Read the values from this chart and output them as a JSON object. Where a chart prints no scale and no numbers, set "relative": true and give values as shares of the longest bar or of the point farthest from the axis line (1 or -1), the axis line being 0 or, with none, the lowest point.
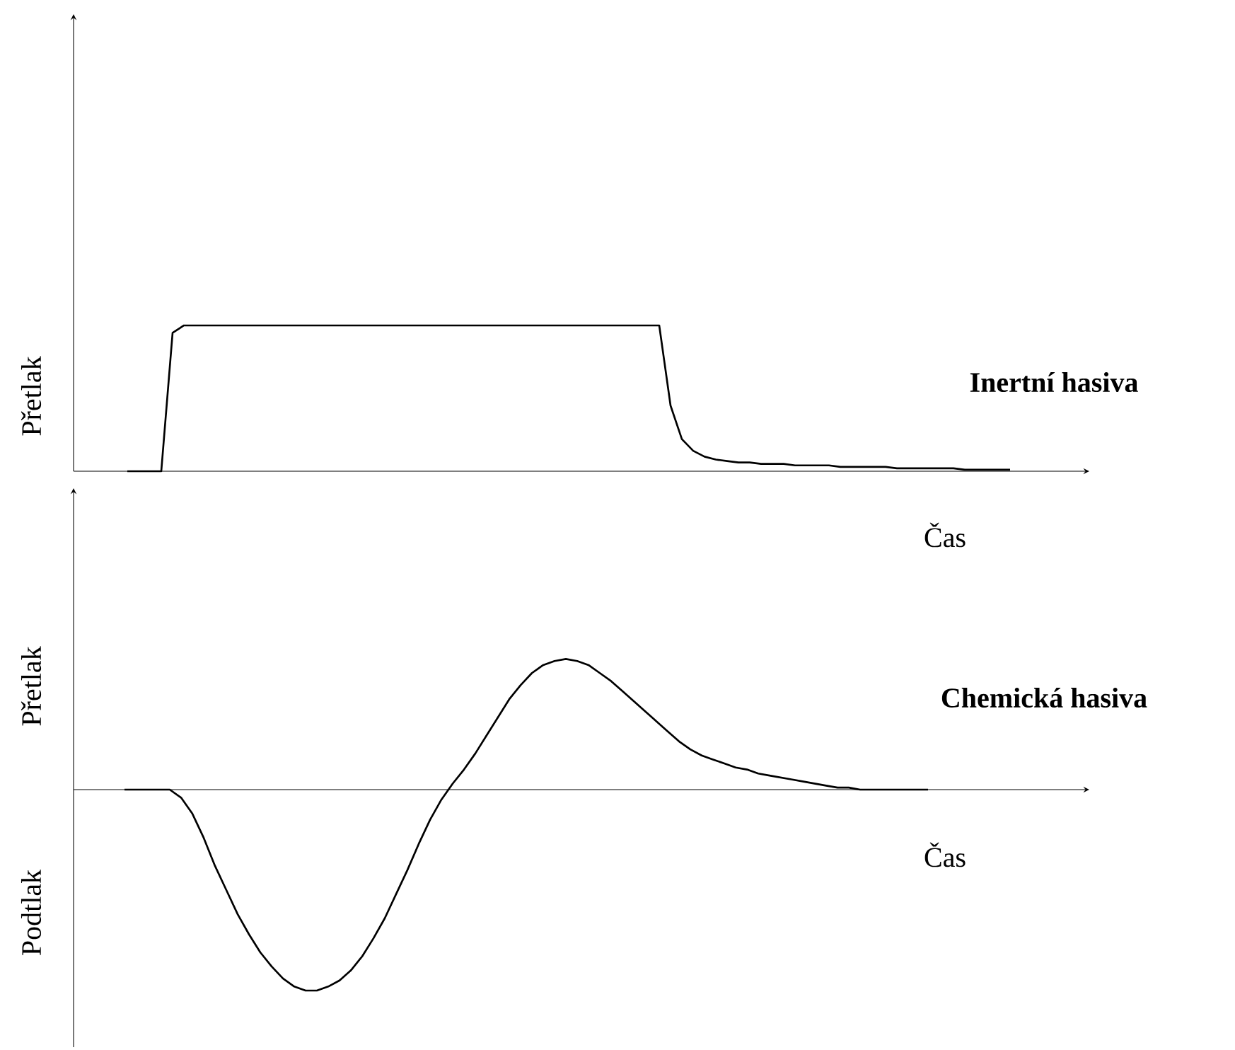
{
  "chart_data": [
    {
      "type": "line",
      "title": "Inertní hasiva",
      "xlabel": "Čas",
      "ylabel": "Přetlak",
      "relative": true,
      "color": "#000000",
      "categories": [
        null,
        null,
        null,
        null,
        null,
        null,
        null,
        null,
        null,
        null,
        null,
        null,
        null,
        null,
        null,
        null,
        null,
        null,
        null,
        null,
        null,
        null,
        null,
        null,
        null,
        null,
        null,
        null,
        null,
        null,
        null,
        null,
        null,
        null,
        null,
        null,
        null,
        null,
        null,
        null,
        null,
        null,
        null,
        null,
        null,
        null,
        null,
        null,
        null,
        null,
        null,
        null,
        null,
        null,
        null,
        null,
        null,
        null,
        null,
        null,
        null,
        null,
        null,
        null,
        null,
        null,
        null,
        null,
        null,
        null,
        null,
        null,
        null,
        null,
        null,
        null,
        null,
        null,
        null
      ],
      "values": [
        0,
        0,
        0,
        0,
        0.95,
        1,
        1,
        1,
        1,
        1,
        1,
        1,
        1,
        1,
        1,
        1,
        1,
        1,
        1,
        1,
        1,
        1,
        1,
        1,
        1,
        1,
        1,
        1,
        1,
        1,
        1,
        1,
        1,
        1,
        1,
        1,
        1,
        1,
        1,
        1,
        1,
        1,
        1,
        1,
        1,
        1,
        1,
        1,
        0.45,
        0.22,
        0.14,
        0.1,
        0.08,
        0.07,
        0.06,
        0.06,
        0.05,
        0.05,
        0.05,
        0.04,
        0.04,
        0.04,
        0.04,
        0.03,
        0.03,
        0.03,
        0.03,
        0.03,
        0.02,
        0.02,
        0.02,
        0.02,
        0.02,
        0.02,
        0.01,
        0.01,
        0.01,
        0.01,
        0.01
      ]
    },
    {
      "type": "line",
      "title": "Chemická hasiva",
      "xlabel": "Čas",
      "ylabel": "Přetlak",
      "annotations": [
        "Podtlak"
      ],
      "relative": true,
      "color": "#000000",
      "categories": [
        null,
        null,
        null,
        null,
        null,
        null,
        null,
        null,
        null,
        null,
        null,
        null,
        null,
        null,
        null,
        null,
        null,
        null,
        null,
        null,
        null,
        null,
        null,
        null,
        null,
        null,
        null,
        null,
        null,
        null,
        null,
        null,
        null,
        null,
        null,
        null,
        null,
        null,
        null,
        null,
        null,
        null,
        null,
        null,
        null,
        null,
        null,
        null,
        null,
        null,
        null,
        null,
        null,
        null,
        null,
        null,
        null,
        null,
        null,
        null,
        null,
        null,
        null,
        null,
        null,
        null,
        null,
        null,
        null,
        null,
        null,
        null
      ],
      "values": [
        0,
        0,
        0,
        0,
        0,
        -0.04,
        -0.12,
        -0.24,
        -0.38,
        -0.5,
        -0.62,
        -0.72,
        -0.81,
        -0.88,
        -0.94,
        -0.98,
        -1,
        -1,
        -0.98,
        -0.95,
        -0.9,
        -0.83,
        -0.74,
        -0.64,
        -0.52,
        -0.4,
        -0.27,
        -0.15,
        -0.05,
        0.03,
        0.1,
        0.18,
        0.27,
        0.36,
        0.45,
        0.52,
        0.58,
        0.62,
        0.64,
        0.65,
        0.64,
        0.62,
        0.58,
        0.54,
        0.49,
        0.44,
        0.39,
        0.34,
        0.29,
        0.24,
        0.2,
        0.17,
        0.15,
        0.13,
        0.11,
        0.1,
        0.08,
        0.07,
        0.06,
        0.05,
        0.04,
        0.03,
        0.02,
        0.01,
        0.01,
        0,
        0,
        0,
        0,
        0,
        0,
        0
      ]
    }
  ]
}
